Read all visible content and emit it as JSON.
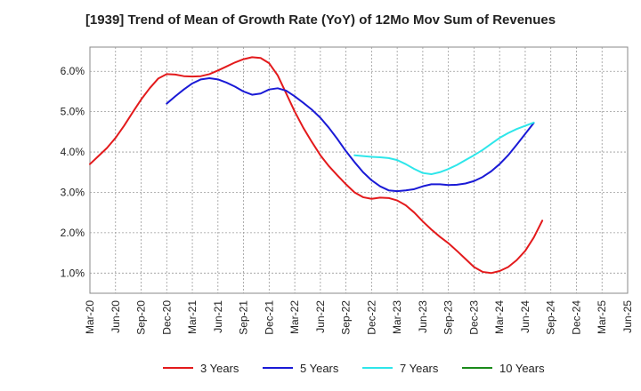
{
  "chart_data": {
    "type": "line",
    "title": "[1939]  Trend of Mean of Growth Rate (YoY) of 12Mo Mov Sum of Revenues",
    "xlabel": "",
    "ylabel": "",
    "ylim": [
      0.5,
      6.6
    ],
    "y_ticks": [
      1.0,
      2.0,
      3.0,
      4.0,
      5.0,
      6.0
    ],
    "y_tick_labels": [
      "1.0%",
      "2.0%",
      "3.0%",
      "4.0%",
      "5.0%",
      "6.0%"
    ],
    "x_tick_labels": [
      "Mar-20",
      "Jun-20",
      "Sep-20",
      "Dec-20",
      "Mar-21",
      "Jun-21",
      "Sep-21",
      "Dec-21",
      "Mar-22",
      "Jun-22",
      "Sep-22",
      "Dec-22",
      "Mar-23",
      "Jun-23",
      "Sep-23",
      "Dec-23",
      "Mar-24",
      "Jun-24",
      "Sep-24",
      "Dec-24",
      "Mar-25",
      "Jun-25"
    ],
    "grid": true,
    "legend_position": "bottom",
    "series": [
      {
        "name": "3 Years",
        "color": "#e31a1c",
        "values": [
          3.7,
          3.9,
          4.1,
          4.35,
          4.65,
          4.98,
          5.3,
          5.58,
          5.82,
          5.93,
          5.92,
          5.88,
          5.87,
          5.88,
          5.93,
          6.02,
          6.12,
          6.22,
          6.3,
          6.35,
          6.33,
          6.2,
          5.9,
          5.45,
          5.0,
          4.6,
          4.25,
          3.92,
          3.65,
          3.42,
          3.2,
          3.0,
          2.88,
          2.84,
          2.87,
          2.86,
          2.8,
          2.68,
          2.5,
          2.28,
          2.08,
          1.9,
          1.74,
          1.55,
          1.35,
          1.15,
          1.03,
          1.0,
          1.05,
          1.15,
          1.32,
          1.55,
          1.88,
          2.3
        ]
      },
      {
        "name": "5 Years",
        "color": "#1a1ad6",
        "values": [
          null,
          null,
          null,
          null,
          null,
          null,
          null,
          null,
          null,
          5.2,
          5.38,
          5.55,
          5.7,
          5.8,
          5.83,
          5.8,
          5.72,
          5.62,
          5.5,
          5.42,
          5.45,
          5.55,
          5.58,
          5.52,
          5.38,
          5.22,
          5.05,
          4.85,
          4.6,
          4.32,
          4.02,
          3.75,
          3.5,
          3.3,
          3.15,
          3.05,
          3.03,
          3.05,
          3.08,
          3.15,
          3.2,
          3.2,
          3.18,
          3.19,
          3.22,
          3.28,
          3.38,
          3.52,
          3.7,
          3.92,
          4.18,
          4.45,
          4.72
        ]
      },
      {
        "name": "7 Years",
        "color": "#2ee6ea",
        "values": [
          null,
          null,
          null,
          null,
          null,
          null,
          null,
          null,
          null,
          null,
          null,
          null,
          null,
          null,
          null,
          null,
          null,
          null,
          null,
          null,
          null,
          null,
          null,
          null,
          null,
          null,
          null,
          null,
          null,
          null,
          null,
          3.92,
          3.9,
          3.88,
          3.87,
          3.85,
          3.8,
          3.7,
          3.58,
          3.48,
          3.45,
          3.5,
          3.58,
          3.68,
          3.8,
          3.92,
          4.05,
          4.2,
          4.35,
          4.47,
          4.57,
          4.65,
          4.73
        ]
      },
      {
        "name": "10 Years",
        "color": "#1a8a1a",
        "values": []
      }
    ]
  }
}
